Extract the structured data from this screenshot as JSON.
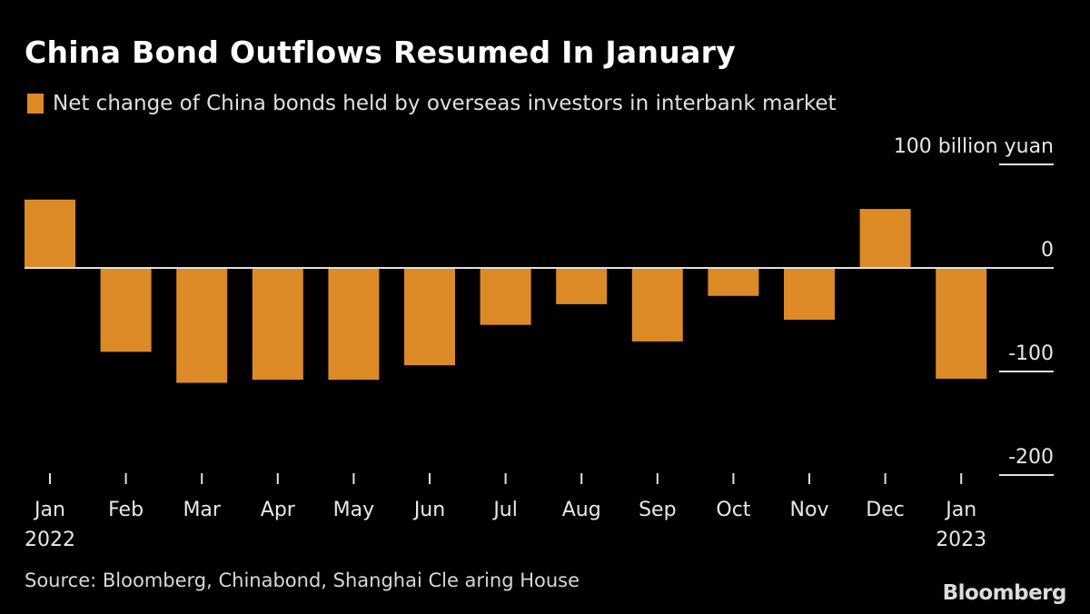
{
  "title": "China Bond Outflows Resumed In January",
  "source": "Source: Bloomberg, Chinabond, Shanghai Cle aring House",
  "logo": "Bloomberg",
  "colors": {
    "bar": "#dc8a26",
    "background": "#000000",
    "text": "#e8e8e8"
  },
  "chart_data": {
    "type": "bar",
    "title": "China Bond Outflows Resumed In January",
    "legend": [
      "Net change of China bonds held by overseas investors in interbank market"
    ],
    "legend_position": "top-left",
    "unit_label": "100 billion yuan",
    "categories": [
      "Jan",
      "Feb",
      "Mar",
      "Apr",
      "May",
      "Jun",
      "Jul",
      "Aug",
      "Sep",
      "Oct",
      "Nov",
      "Dec",
      "Jan"
    ],
    "category_years": [
      "2022",
      "",
      "",
      "",
      "",
      "",
      "",
      "",
      "",
      "",
      "",
      "",
      "2023"
    ],
    "series": [
      {
        "name": "Net change of China bonds held by overseas investors in interbank market",
        "values": [
          66,
          -81,
          -111,
          -108,
          -108,
          -94,
          -55,
          -35,
          -71,
          -27,
          -50,
          57,
          -107
        ]
      }
    ],
    "ylim": [
      -200,
      100
    ],
    "yticks": [
      100,
      0,
      -100,
      -200
    ],
    "ytick_labels": [
      "100 billion yuan",
      "0",
      "-100",
      "-200"
    ],
    "y_axis_position": "right",
    "grid": false
  }
}
